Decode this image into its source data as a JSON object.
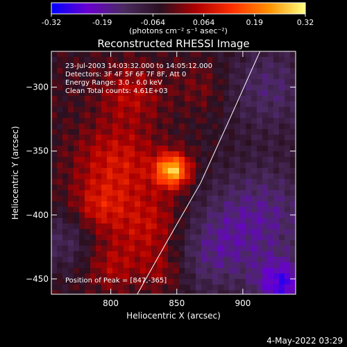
{
  "chart_data": {
    "type": "heatmap",
    "title": "Reconstructed RHESSI Image",
    "xlabel": "Heliocentric X (arcsec)",
    "ylabel": "Heliocentric Y (arcsec)",
    "xlim": [
      755,
      940
    ],
    "ylim": [
      -462,
      -272
    ],
    "x_ticks": [
      800,
      850,
      900
    ],
    "y_ticks": [
      -300,
      -350,
      -400,
      -450
    ],
    "grid": false,
    "colorbar": {
      "position": "top",
      "range": [
        -0.32,
        0.32
      ],
      "ticks": [
        "-0.32",
        "-0.19",
        "-0.064",
        "0.064",
        "0.19",
        "0.32"
      ],
      "unit_label": "(photons cm⁻² s⁻¹ asec⁻²)",
      "colors": [
        "#0000ff",
        "#6a00d0",
        "#4a2a60",
        "#2a1020",
        "#b00000",
        "#ff3000",
        "#ff9000",
        "#ffff80"
      ]
    },
    "annotations": [
      "23-Jul-2003 14:03:32.000 to 14:05:12.000",
      "Detectors: 3F 4F 5F 6F 7F 8F, Att 0",
      "Energy Range: 3.0 - 6.0 keV",
      "Clean     Total counts: 4.61E+03"
    ],
    "peak_label": "Position of Peak = [847,-365]",
    "peak": [
      847,
      -365
    ],
    "limb_line": [
      [
        820,
        -462
      ],
      [
        843,
        -420
      ],
      [
        868,
        -375
      ],
      [
        890,
        -325
      ],
      [
        913,
        -272
      ]
    ],
    "sources": [
      {
        "x": 847,
        "y": -365,
        "amp": 0.3,
        "sigma": 9
      },
      {
        "x": 805,
        "y": -360,
        "amp": 0.12,
        "sigma": 22
      },
      {
        "x": 815,
        "y": -305,
        "amp": 0.09,
        "sigma": 16
      },
      {
        "x": 790,
        "y": -395,
        "amp": 0.1,
        "sigma": 14
      },
      {
        "x": 830,
        "y": -410,
        "amp": 0.11,
        "sigma": 20
      },
      {
        "x": 800,
        "y": -440,
        "amp": 0.08,
        "sigma": 14
      },
      {
        "x": 840,
        "y": -445,
        "amp": 0.07,
        "sigma": 12
      },
      {
        "x": 870,
        "y": -300,
        "amp": 0.05,
        "sigma": 14
      },
      {
        "x": 875,
        "y": -430,
        "amp": -0.1,
        "sigma": 25
      },
      {
        "x": 915,
        "y": -400,
        "amp": -0.12,
        "sigma": 30
      },
      {
        "x": 920,
        "y": -300,
        "amp": -0.1,
        "sigma": 25
      },
      {
        "x": 765,
        "y": -420,
        "amp": -0.08,
        "sigma": 18
      },
      {
        "x": 930,
        "y": -455,
        "amp": -0.2,
        "sigma": 14
      }
    ]
  },
  "footer": {
    "timestamp": "4-May-2022 03:29"
  }
}
